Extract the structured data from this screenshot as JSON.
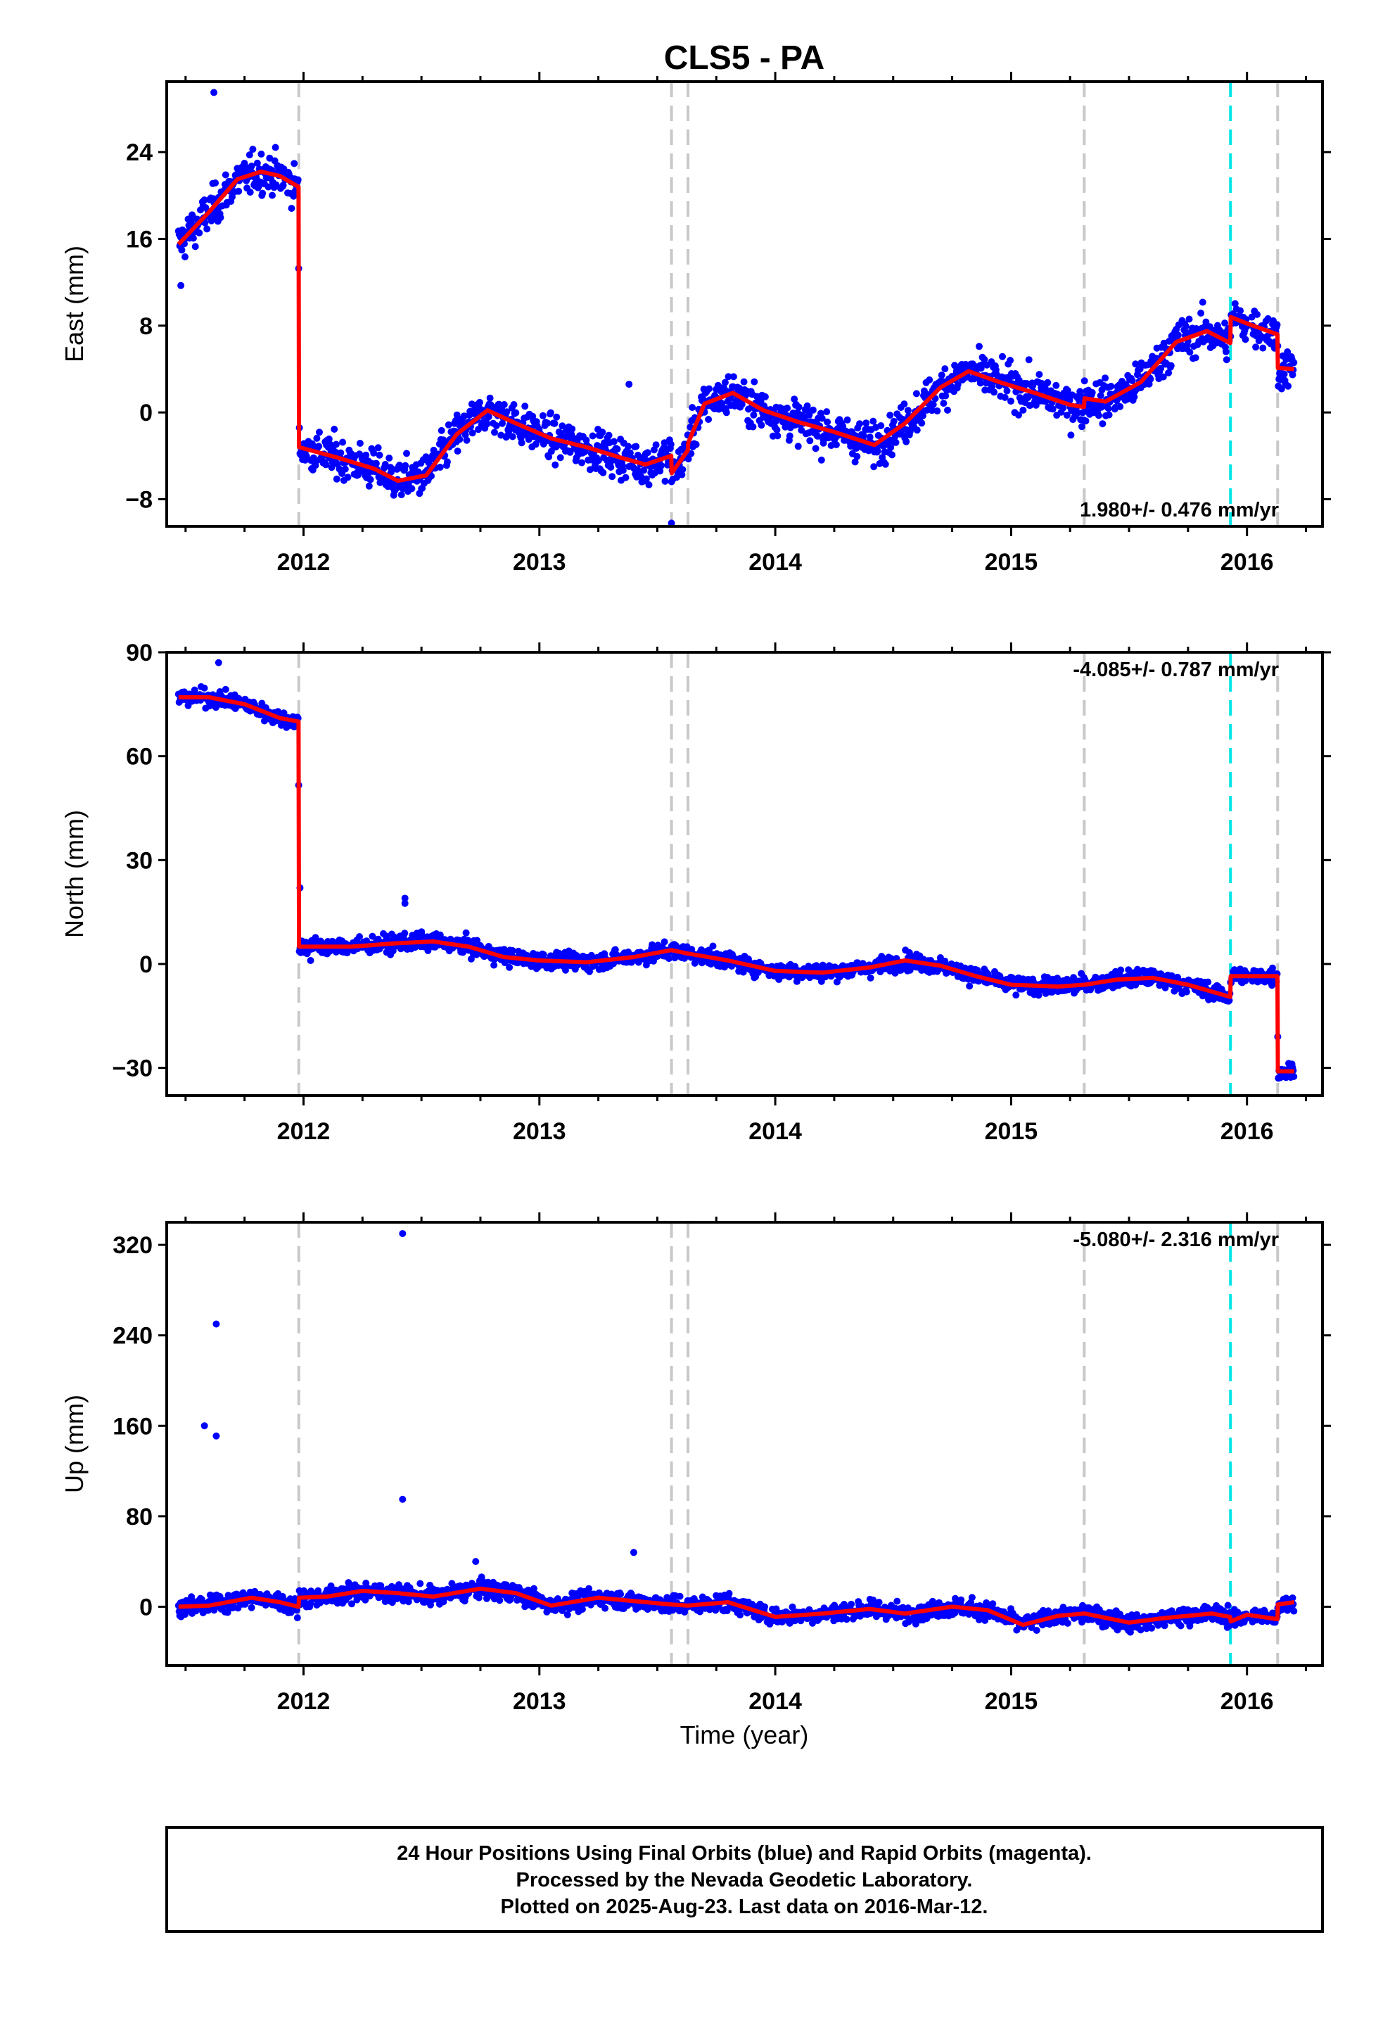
{
  "title": "CLS5 - PA",
  "xlabel": "Time (year)",
  "colors": {
    "final_orbits": "#0000ff",
    "model": "#ff0000",
    "event_line": "#c8c8c8",
    "event_line_highlight": "#00e5e5",
    "frame": "#000000"
  },
  "footer": {
    "line1": "24 Hour Positions Using Final Orbits (blue) and Rapid Orbits (magenta).",
    "line2": "Processed by the Nevada Geodetic Laboratory.",
    "line3": "Plotted on 2025-Aug-23. Last data on 2016-Mar-12."
  },
  "chart_data": [
    {
      "type": "scatter",
      "component": "East",
      "ylabel": "East (mm)",
      "rate_label": "1.980+/- 0.476 mm/yr",
      "rate_position": "bottom-right",
      "xlim": [
        2011.42,
        2016.32
      ],
      "ylim": [
        -10.5,
        30.5
      ],
      "yticks": [
        -8,
        0,
        8,
        16,
        24
      ],
      "ytick_labels": [
        "−8",
        "0",
        "8",
        "16",
        "24"
      ],
      "xticks": [
        2012,
        2013,
        2014,
        2015,
        2016
      ],
      "xtick_labels": [
        "2012",
        "2013",
        "2014",
        "2015",
        "2016"
      ],
      "event_lines": [
        2011.98,
        2013.56,
        2013.63,
        2015.31,
        2016.13
      ],
      "highlight_event_lines": [
        2015.93
      ],
      "model": {
        "x": [
          2011.47,
          2011.6,
          2011.72,
          2011.82,
          2011.9,
          2011.979,
          2011.981,
          2012.15,
          2012.3,
          2012.4,
          2012.52,
          2012.65,
          2012.78,
          2012.9,
          2013.05,
          2013.2,
          2013.35,
          2013.45,
          2013.559,
          2013.561,
          2013.629,
          2013.631,
          2013.7,
          2013.82,
          2013.95,
          2014.1,
          2014.25,
          2014.42,
          2014.55,
          2014.7,
          2014.82,
          2014.95,
          2015.1,
          2015.25,
          2015.309,
          2015.311,
          2015.4,
          2015.55,
          2015.7,
          2015.83,
          2015.929,
          2015.931,
          2016.0,
          2016.129,
          2016.131,
          2016.2
        ],
        "y": [
          15.5,
          18.5,
          21.5,
          22.2,
          21.8,
          20.8,
          -3.2,
          -4.2,
          -5.2,
          -6.3,
          -5.8,
          -2.0,
          0.2,
          -1.0,
          -2.4,
          -3.2,
          -4.2,
          -4.8,
          -4.0,
          -5.6,
          -3.5,
          -2.8,
          0.8,
          1.8,
          0.2,
          -0.9,
          -1.8,
          -3.0,
          -1.0,
          2.3,
          3.8,
          2.8,
          1.8,
          0.7,
          0.5,
          1.3,
          1.0,
          2.8,
          6.5,
          7.5,
          6.4,
          8.8,
          8.2,
          7.2,
          4.1,
          4.0
        ]
      },
      "outliers": [
        [
          2011.62,
          29.5
        ],
        [
          2011.48,
          11.7
        ],
        [
          2013.38,
          2.6
        ],
        [
          2013.56,
          -10.2
        ]
      ]
    },
    {
      "type": "scatter",
      "component": "North",
      "ylabel": "North (mm)",
      "rate_label": "-4.085+/- 0.787 mm/yr",
      "rate_position": "top-right",
      "xlim": [
        2011.42,
        2016.32
      ],
      "ylim": [
        -38,
        90
      ],
      "yticks": [
        -30,
        0,
        30,
        60,
        90
      ],
      "ytick_labels": [
        "−30",
        "0",
        "30",
        "60",
        "90"
      ],
      "xticks": [
        2012,
        2013,
        2014,
        2015,
        2016
      ],
      "xtick_labels": [
        "2012",
        "2013",
        "2014",
        "2015",
        "2016"
      ],
      "event_lines": [
        2011.98,
        2013.56,
        2013.63,
        2015.31,
        2016.13
      ],
      "highlight_event_lines": [
        2015.93
      ],
      "model": {
        "x": [
          2011.47,
          2011.6,
          2011.75,
          2011.9,
          2011.979,
          2011.981,
          2012.2,
          2012.4,
          2012.55,
          2012.7,
          2012.85,
          2013.0,
          2013.2,
          2013.4,
          2013.559,
          2013.561,
          2013.629,
          2013.631,
          2013.8,
          2014.0,
          2014.2,
          2014.4,
          2014.55,
          2014.7,
          2014.85,
          2015.0,
          2015.2,
          2015.309,
          2015.311,
          2015.45,
          2015.6,
          2015.75,
          2015.929,
          2015.931,
          2016.129,
          2016.131,
          2016.2
        ],
        "y": [
          77,
          77,
          75,
          71,
          70,
          5,
          5,
          6,
          6.5,
          5,
          2,
          1,
          0.5,
          2,
          4,
          4,
          3,
          3,
          1,
          -2,
          -2.5,
          -1,
          1,
          -0.5,
          -3.5,
          -6,
          -6.5,
          -6,
          -6,
          -4.5,
          -4,
          -6,
          -9.5,
          -3.5,
          -3.5,
          -31,
          -31
        ]
      },
      "outliers": [
        [
          2011.985,
          22
        ],
        [
          2012.43,
          19
        ],
        [
          2012.43,
          17.5
        ],
        [
          2011.64,
          87
        ],
        [
          2012.03,
          1
        ]
      ]
    },
    {
      "type": "scatter",
      "component": "Up",
      "ylabel": "Up (mm)",
      "rate_label": "-5.080+/- 2.316 mm/yr",
      "rate_position": "top-right",
      "xlim": [
        2011.42,
        2016.32
      ],
      "ylim": [
        -52,
        340
      ],
      "yticks": [
        0,
        80,
        160,
        240,
        320
      ],
      "ytick_labels": [
        "0",
        "80",
        "160",
        "240",
        "320"
      ],
      "xticks": [
        2012,
        2013,
        2014,
        2015,
        2016
      ],
      "xtick_labels": [
        "2012",
        "2013",
        "2014",
        "2015",
        "2016"
      ],
      "event_lines": [
        2011.98,
        2013.56,
        2013.63,
        2015.31,
        2016.13
      ],
      "highlight_event_lines": [
        2015.93
      ],
      "model": {
        "x": [
          2011.47,
          2011.6,
          2011.78,
          2011.9,
          2011.979,
          2011.981,
          2012.1,
          2012.25,
          2012.4,
          2012.55,
          2012.75,
          2012.9,
          2013.05,
          2013.25,
          2013.4,
          2013.559,
          2013.561,
          2013.629,
          2013.631,
          2013.8,
          2014.0,
          2014.2,
          2014.4,
          2014.55,
          2014.75,
          2014.9,
          2015.05,
          2015.2,
          2015.309,
          2015.311,
          2015.5,
          2015.65,
          2015.85,
          2015.929,
          2015.931,
          2016.0,
          2016.129,
          2016.131,
          2016.2
        ],
        "y": [
          0,
          1,
          8,
          4,
          0,
          8,
          9,
          14,
          12,
          9,
          16,
          12,
          1,
          8,
          5,
          2,
          2,
          1,
          1,
          4,
          -9,
          -6,
          -2,
          -6,
          0,
          -3,
          -16,
          -8,
          -6,
          -6,
          -14,
          -10,
          -6,
          -9,
          -13,
          -7,
          -11,
          2,
          4
        ]
      },
      "outliers": [
        [
          2011.63,
          250
        ],
        [
          2011.58,
          160
        ],
        [
          2011.63,
          151
        ],
        [
          2012.42,
          330
        ],
        [
          2012.42,
          95
        ],
        [
          2013.4,
          48
        ],
        [
          2012.73,
          40
        ]
      ]
    }
  ]
}
